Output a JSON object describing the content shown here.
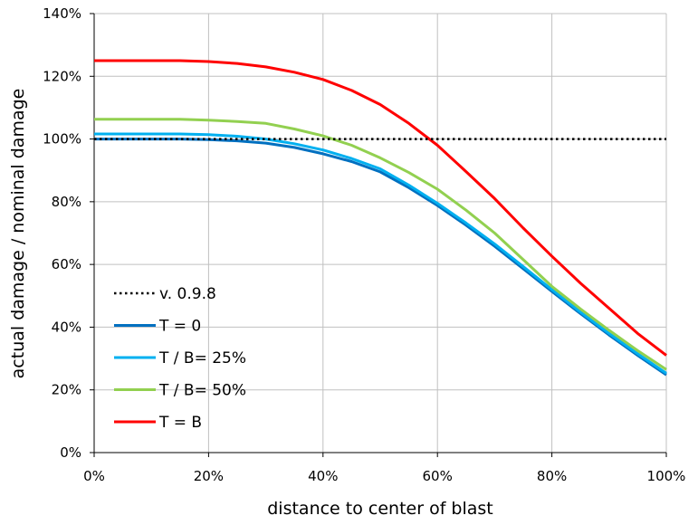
{
  "chart_data": {
    "type": "line",
    "title": "",
    "xlabel": "distance to center of blast",
    "ylabel": "actual damage / nominal damage",
    "xlim": [
      0,
      100
    ],
    "ylim": [
      0,
      140
    ],
    "grid": true,
    "legend_position": "bottom-left",
    "x_ticks": [
      "0%",
      "20%",
      "40%",
      "60%",
      "80%",
      "100%"
    ],
    "y_ticks": [
      "0%",
      "20%",
      "40%",
      "60%",
      "80%",
      "100%",
      "120%",
      "140%"
    ],
    "x_tick_values": [
      0,
      20,
      40,
      60,
      80,
      100
    ],
    "y_tick_values": [
      0,
      20,
      40,
      60,
      80,
      100,
      120,
      140
    ],
    "x": [
      0,
      5,
      10,
      15,
      20,
      25,
      30,
      35,
      40,
      45,
      50,
      55,
      60,
      65,
      70,
      75,
      80,
      85,
      90,
      95,
      100
    ],
    "series": [
      {
        "name": "v. 0.9.8",
        "color": "#000000",
        "dash": "dotted",
        "values": [
          100,
          100,
          100,
          100,
          100,
          100,
          100,
          100,
          100,
          100,
          100,
          100,
          100,
          100,
          100,
          100,
          100,
          100,
          100,
          100,
          100
        ]
      },
      {
        "name": "T = 0",
        "color": "#0070c0",
        "dash": "solid",
        "values": [
          100,
          100,
          100,
          100,
          99.8,
          99.4,
          98.7,
          97.3,
          95.3,
          92.8,
          89.5,
          84.5,
          78.8,
          72.5,
          65.8,
          58.6,
          51.4,
          44.3,
          37.5,
          31.0,
          24.8
        ]
      },
      {
        "name": "T / B= 25%",
        "color": "#00b0f0",
        "dash": "solid",
        "values": [
          101.6,
          101.6,
          101.6,
          101.6,
          101.4,
          100.9,
          100,
          98.5,
          96.5,
          93.8,
          90.5,
          85.3,
          79.5,
          73.2,
          66.5,
          59.3,
          52,
          44.8,
          38,
          31.5,
          25.3
        ]
      },
      {
        "name": "T / B= 50%",
        "color": "#92d050",
        "dash": "solid",
        "values": [
          106.3,
          106.3,
          106.3,
          106.3,
          106,
          105.6,
          105,
          103.2,
          101,
          98,
          94,
          89.3,
          84,
          77.3,
          70,
          61.5,
          53,
          45.8,
          39,
          32.5,
          26.5
        ]
      },
      {
        "name": "T = B",
        "color": "#ff0000",
        "dash": "solid",
        "values": [
          125,
          125,
          125,
          125,
          124.7,
          124.1,
          123,
          121.3,
          119,
          115.5,
          111,
          105,
          98,
          89.6,
          81,
          71.6,
          62.6,
          54,
          46,
          38,
          31
        ]
      }
    ]
  }
}
